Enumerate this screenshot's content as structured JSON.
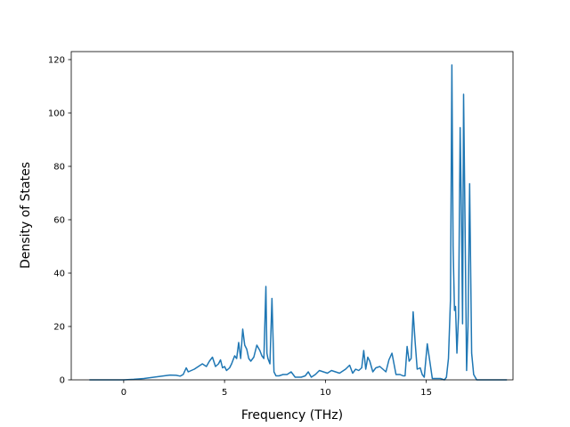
{
  "chart_data": {
    "type": "line",
    "title": "",
    "xlabel": "Frequency (THz)",
    "ylabel": "Density of States",
    "xlim": [
      -2.6,
      19.3
    ],
    "ylim": [
      0,
      123
    ],
    "xticks": [
      0,
      5,
      10,
      15
    ],
    "yticks": [
      0,
      20,
      40,
      60,
      80,
      100,
      120
    ],
    "grid": false,
    "legend": "none",
    "series": [
      {
        "color": "#1f77b4",
        "x": [
          -1.7,
          -1.0,
          0.0,
          0.5,
          1.0,
          1.5,
          2.0,
          2.3,
          2.6,
          2.8,
          2.95,
          3.1,
          3.2,
          3.35,
          3.5,
          3.7,
          3.9,
          4.1,
          4.25,
          4.4,
          4.55,
          4.7,
          4.8,
          4.9,
          5.0,
          5.1,
          5.25,
          5.35,
          5.5,
          5.6,
          5.7,
          5.8,
          5.9,
          6.0,
          6.1,
          6.2,
          6.3,
          6.45,
          6.6,
          6.75,
          6.85,
          6.95,
          7.05,
          7.1,
          7.15,
          7.25,
          7.35,
          7.45,
          7.55,
          7.7,
          7.9,
          8.1,
          8.3,
          8.5,
          8.8,
          9.0,
          9.15,
          9.3,
          9.5,
          9.7,
          9.9,
          10.1,
          10.3,
          10.5,
          10.7,
          11.0,
          11.2,
          11.35,
          11.5,
          11.65,
          11.8,
          11.9,
          12.0,
          12.1,
          12.2,
          12.35,
          12.5,
          12.7,
          12.85,
          13.0,
          13.15,
          13.3,
          13.5,
          13.7,
          13.85,
          13.95,
          14.05,
          14.15,
          14.25,
          14.35,
          14.45,
          14.55,
          14.7,
          14.8,
          14.9,
          15.05,
          15.3,
          15.7,
          15.9,
          16.0,
          16.1,
          16.2,
          16.27,
          16.33,
          16.4,
          16.45,
          16.52,
          16.6,
          16.68,
          16.75,
          16.8,
          16.85,
          16.92,
          17.0,
          17.07,
          17.15,
          17.25,
          17.35,
          17.5,
          18.0,
          18.5,
          19.0
        ],
        "y": [
          0,
          0,
          0,
          0.2,
          0.5,
          1.0,
          1.5,
          1.8,
          1.7,
          1.4,
          2.0,
          4.5,
          3.0,
          3.5,
          4.0,
          5.0,
          6.0,
          5.0,
          7.0,
          8.5,
          5.0,
          6.0,
          7.5,
          4.5,
          5.0,
          3.5,
          4.5,
          6.0,
          9.0,
          8.0,
          14.0,
          8.0,
          19.0,
          13.0,
          11.5,
          8.0,
          7.0,
          8.5,
          13.0,
          11.0,
          9.0,
          8.0,
          35.0,
          10.0,
          8.0,
          6.0,
          30.5,
          3.0,
          1.5,
          1.5,
          2.0,
          2.0,
          3.0,
          1.0,
          1.0,
          1.5,
          3.0,
          1.0,
          2.0,
          3.5,
          3.0,
          2.5,
          3.5,
          3.0,
          2.5,
          4.0,
          5.5,
          2.5,
          4.0,
          3.5,
          4.5,
          11.0,
          4.0,
          8.5,
          7.0,
          3.0,
          4.5,
          5.0,
          4.0,
          3.0,
          7.5,
          10.0,
          2.0,
          2.0,
          1.5,
          1.5,
          12.5,
          7.0,
          8.0,
          25.5,
          14.0,
          4.0,
          4.5,
          2.0,
          1.0,
          13.5,
          0.5,
          0.5,
          0,
          1.0,
          8.0,
          30.0,
          118.0,
          50.0,
          26.0,
          27.5,
          10.0,
          24.0,
          94.5,
          58.0,
          21.0,
          107.0,
          60.0,
          3.5,
          20.0,
          73.5,
          10.0,
          2.0,
          0,
          0,
          0,
          0
        ]
      }
    ]
  }
}
